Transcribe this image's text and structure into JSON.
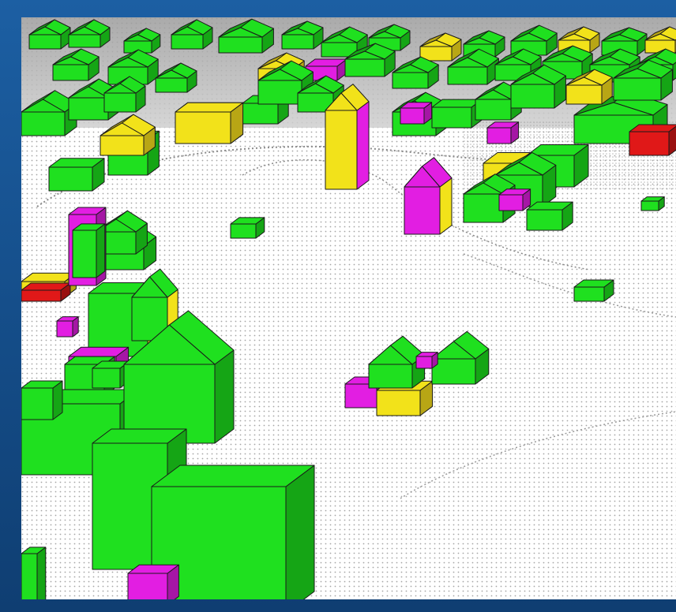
{
  "scene": {
    "colors": {
      "frame": "#1c5fa3",
      "ground": "#ffffff",
      "ground_points": "#9a9a9a",
      "sky_cloud": "#9e9e9e",
      "building_green": "#1fe01f",
      "building_green_dark": "#15a515",
      "building_yellow": "#f2e21a",
      "building_yellow_dark": "#b8a615",
      "building_magenta": "#e21ee2",
      "building_magenta_dark": "#a516a5",
      "building_red": "#e01818",
      "outline": "#1a1a1a"
    },
    "legend_icons": [
      "building-icon",
      "roof-icon",
      "point-cloud-icon"
    ]
  }
}
